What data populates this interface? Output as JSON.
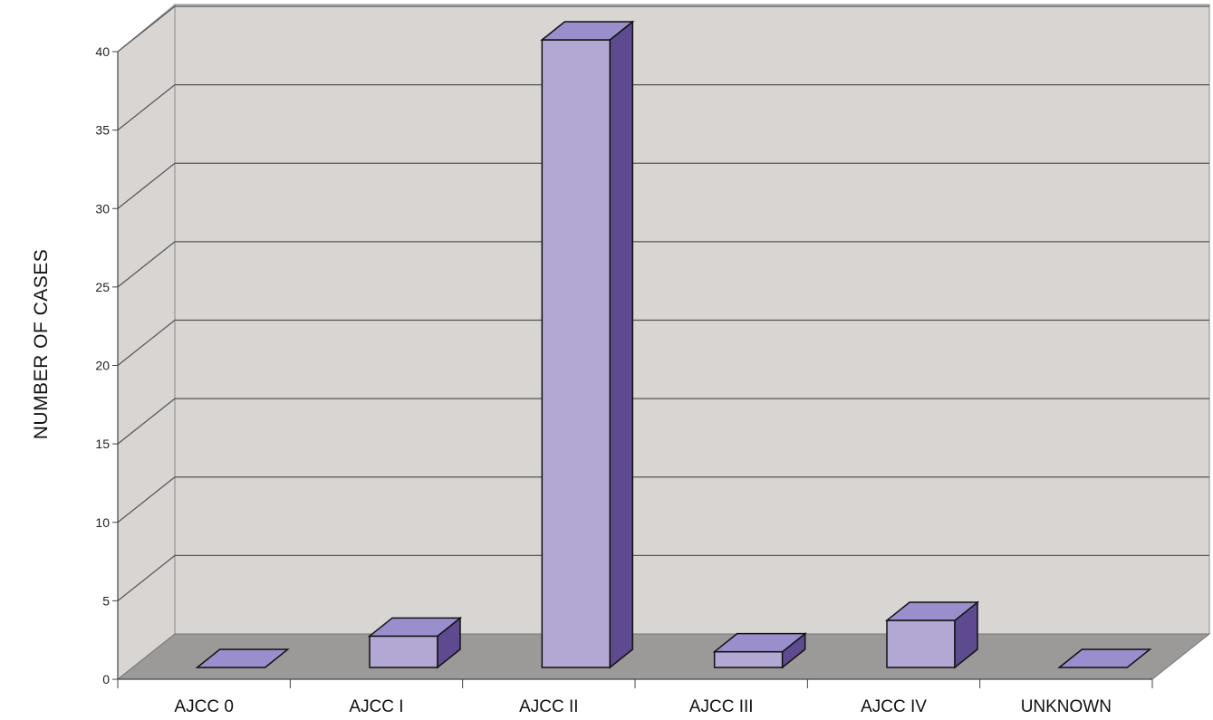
{
  "chart_data": {
    "type": "bar",
    "title": "",
    "xlabel": "",
    "ylabel": "NUMBER OF CASES",
    "categories": [
      "AJCC 0",
      "AJCC I",
      "AJCC II",
      "AJCC III",
      "AJCC IV",
      "UNKNOWN"
    ],
    "values": [
      0,
      2,
      40,
      1,
      3,
      0
    ],
    "ylim": [
      0,
      40
    ],
    "yticks": [
      0,
      5,
      10,
      15,
      20,
      25,
      30,
      35,
      40
    ],
    "grid": true,
    "three_d": true,
    "legend": "none"
  },
  "colors": {
    "bar_front": "#b3a8d3",
    "bar_top": "#9a8fcc",
    "bar_side": "#5e4a8e",
    "wall": "#d8d5d3",
    "floor": "#9c9a98",
    "grid": "#555555"
  }
}
